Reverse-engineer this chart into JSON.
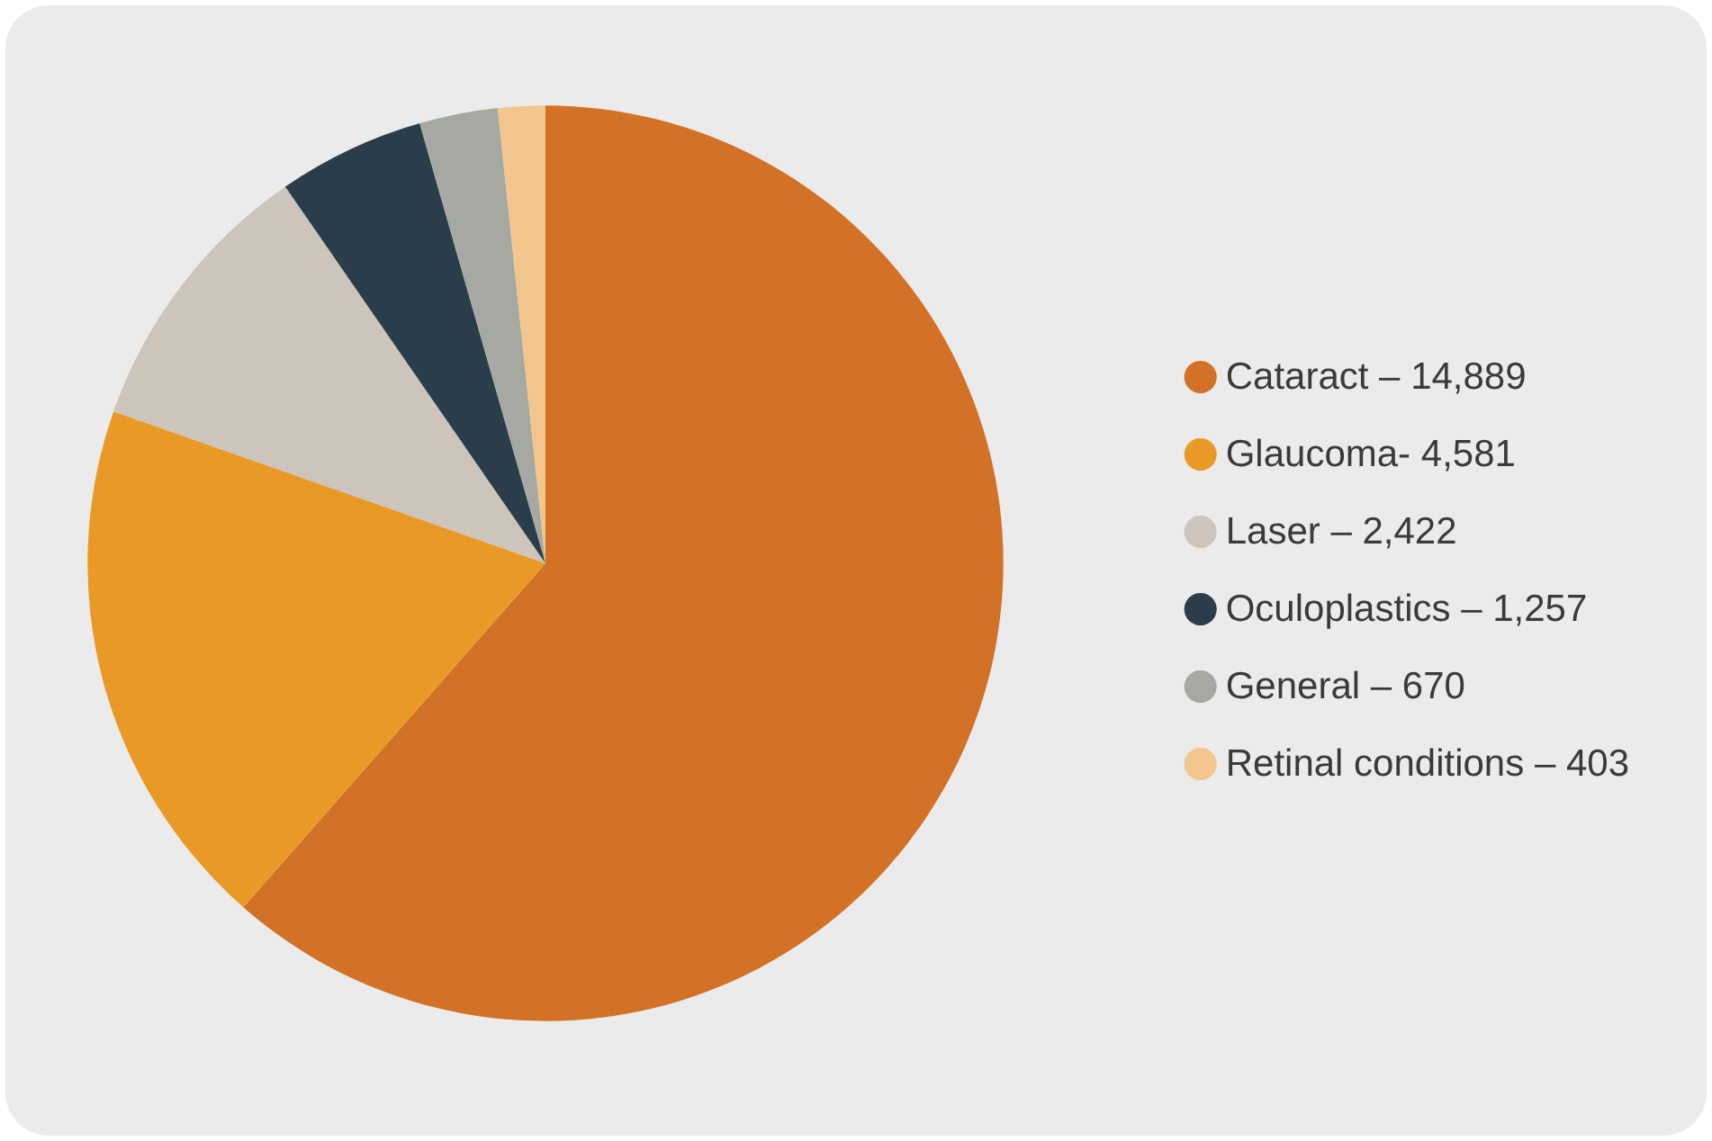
{
  "chart_data": {
    "type": "pie",
    "categories": [
      "Cataract –",
      "Glaucoma-",
      "Laser –",
      "Oculoplastics –",
      "General –",
      "Retinal conditions –"
    ],
    "values": [
      14889,
      4581,
      2422,
      1257,
      670,
      403
    ],
    "value_labels": [
      "14,889",
      "4,581",
      "2,422",
      "1,257",
      "670",
      "403"
    ],
    "colors": [
      "#d37126",
      "#e99a26",
      "#cdc4bb",
      "#2b3d4a",
      "#a6a8a2",
      "#f3c68d"
    ],
    "legend": "right"
  }
}
